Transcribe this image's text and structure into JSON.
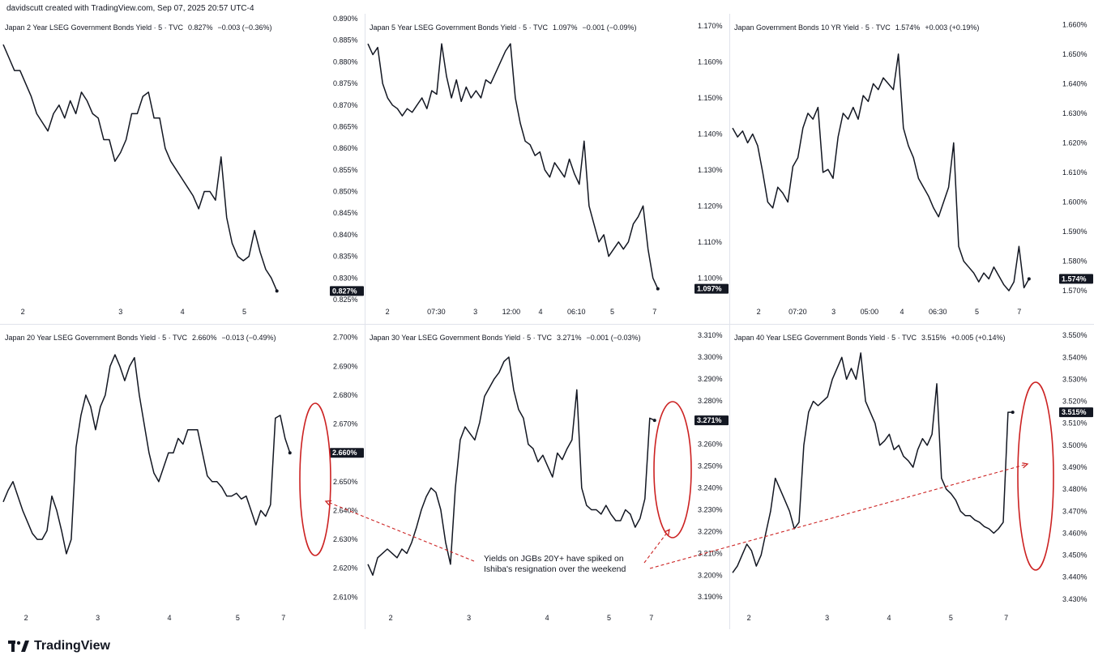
{
  "header": {
    "attribution": "davidscutt created with TradingView.com, Sep 07, 2025 20:57 UTC-4"
  },
  "brand": {
    "name": "TradingView",
    "logo_icon": "tradingview-logo-icon"
  },
  "annotation": {
    "text_line1": "Yields on JGBs 20Y+ have spiked on",
    "text_line2": "Ishiba's resignation over the weekend",
    "color": "#cc2222"
  },
  "colors": {
    "line": "#131722",
    "grid": "#e0e3eb",
    "last_bg": "#131722",
    "highlight": "#cc2222"
  },
  "chart_data": [
    {
      "type": "line",
      "title_name": "Japan 2 Year LSEG Government Bonds Yield · 5 · TVC",
      "title_last": "0.827%",
      "title_change": "−0.003 (−0.36%)",
      "last_label": "0.827%",
      "y_ticks": [
        "0.825%",
        "0.830%",
        "0.835%",
        "0.840%",
        "0.845%",
        "0.850%",
        "0.855%",
        "0.860%",
        "0.865%",
        "0.870%",
        "0.875%",
        "0.880%",
        "0.885%",
        "0.890%"
      ],
      "ylim": [
        0.825,
        0.89
      ],
      "x_ticks": [
        "2",
        "3",
        "4",
        "5"
      ],
      "x_tick_pos": [
        0.06,
        0.36,
        0.55,
        0.74
      ],
      "x_end": 0.84,
      "values": [
        0.884,
        0.881,
        0.878,
        0.878,
        0.875,
        0.872,
        0.868,
        0.866,
        0.864,
        0.868,
        0.87,
        0.867,
        0.871,
        0.868,
        0.873,
        0.871,
        0.868,
        0.867,
        0.862,
        0.862,
        0.857,
        0.859,
        0.862,
        0.868,
        0.868,
        0.872,
        0.873,
        0.867,
        0.867,
        0.86,
        0.857,
        0.855,
        0.853,
        0.851,
        0.849,
        0.846,
        0.85,
        0.85,
        0.848,
        0.858,
        0.844,
        0.838,
        0.835,
        0.834,
        0.835,
        0.841,
        0.836,
        0.832,
        0.83,
        0.827
      ],
      "last_value": 0.827
    },
    {
      "type": "line",
      "title_name": "Japan 5 Year LSEG Government Bonds Yield · 5 · TVC",
      "title_last": "1.097%",
      "title_change": "−0.001 (−0.09%)",
      "last_label": "1.097%",
      "y_ticks": [
        "1.100%",
        "1.110%",
        "1.120%",
        "1.130%",
        "1.140%",
        "1.150%",
        "1.160%",
        "1.170%"
      ],
      "ylim": [
        1.094,
        1.172
      ],
      "x_ticks": [
        "2",
        "07:30",
        "3",
        "12:00",
        "4",
        "06:10",
        "5",
        "7"
      ],
      "x_tick_pos": [
        0.06,
        0.21,
        0.33,
        0.44,
        0.53,
        0.64,
        0.75,
        0.88
      ],
      "x_end": 0.89,
      "values": [
        1.165,
        1.162,
        1.164,
        1.154,
        1.15,
        1.148,
        1.147,
        1.145,
        1.147,
        1.146,
        1.148,
        1.15,
        1.147,
        1.152,
        1.151,
        1.165,
        1.156,
        1.15,
        1.155,
        1.149,
        1.153,
        1.15,
        1.152,
        1.15,
        1.155,
        1.154,
        1.157,
        1.16,
        1.163,
        1.165,
        1.15,
        1.143,
        1.138,
        1.137,
        1.134,
        1.135,
        1.13,
        1.128,
        1.132,
        1.13,
        1.128,
        1.133,
        1.129,
        1.126,
        1.138,
        1.12,
        1.115,
        1.11,
        1.112,
        1.106,
        1.108,
        1.11,
        1.108,
        1.11,
        1.115,
        1.117,
        1.12,
        1.108,
        1.1,
        1.097
      ],
      "last_value": 1.097
    },
    {
      "type": "line",
      "title_name": "Japan Government Bonds 10 YR Yield · 5 · TVC",
      "title_last": "1.574%",
      "title_change": "+0.003 (+0.19%)",
      "last_label": "1.574%",
      "y_ticks": [
        "1.570%",
        "1.580%",
        "1.590%",
        "1.600%",
        "1.610%",
        "1.620%",
        "1.630%",
        "1.640%",
        "1.650%",
        "1.660%"
      ],
      "ylim": [
        1.567,
        1.662
      ],
      "x_ticks": [
        "2",
        "07:20",
        "3",
        "05:00",
        "4",
        "06:30",
        "5",
        "7"
      ],
      "x_tick_pos": [
        0.08,
        0.2,
        0.31,
        0.42,
        0.52,
        0.63,
        0.75,
        0.88
      ],
      "x_end": 0.91,
      "values": [
        1.625,
        1.622,
        1.624,
        1.62,
        1.623,
        1.619,
        1.61,
        1.6,
        1.598,
        1.605,
        1.603,
        1.6,
        1.612,
        1.615,
        1.625,
        1.63,
        1.628,
        1.632,
        1.61,
        1.611,
        1.608,
        1.622,
        1.63,
        1.628,
        1.632,
        1.628,
        1.636,
        1.634,
        1.64,
        1.638,
        1.642,
        1.64,
        1.638,
        1.65,
        1.625,
        1.619,
        1.615,
        1.608,
        1.605,
        1.602,
        1.598,
        1.595,
        1.6,
        1.605,
        1.62,
        1.585,
        1.58,
        1.578,
        1.576,
        1.573,
        1.576,
        1.574,
        1.578,
        1.575,
        1.572,
        1.57,
        1.573,
        1.585,
        1.571,
        1.574
      ],
      "last_value": 1.574
    },
    {
      "type": "line",
      "title_name": "Japan 20 Year LSEG Government Bonds Yield · 5 · TVC",
      "title_last": "2.660%",
      "title_change": "−0.013 (−0.49%)",
      "last_label": "2.660%",
      "y_ticks": [
        "2.610%",
        "2.620%",
        "2.630%",
        "2.640%",
        "2.650%",
        "2.660%",
        "2.670%",
        "2.680%",
        "2.690%",
        "2.700%"
      ],
      "ylim": [
        2.607,
        2.703
      ],
      "x_ticks": [
        "2",
        "3",
        "4",
        "5",
        "7"
      ],
      "x_tick_pos": [
        0.07,
        0.29,
        0.51,
        0.72,
        0.86
      ],
      "x_end": 0.88,
      "values": [
        2.643,
        2.647,
        2.65,
        2.645,
        2.64,
        2.636,
        2.632,
        2.63,
        2.63,
        2.633,
        2.645,
        2.64,
        2.633,
        2.625,
        2.63,
        2.662,
        2.673,
        2.68,
        2.676,
        2.668,
        2.676,
        2.68,
        2.69,
        2.694,
        2.69,
        2.685,
        2.69,
        2.693,
        2.68,
        2.67,
        2.66,
        2.653,
        2.65,
        2.655,
        2.66,
        2.66,
        2.665,
        2.663,
        2.668,
        2.668,
        2.668,
        2.66,
        2.652,
        2.65,
        2.65,
        2.648,
        2.645,
        2.645,
        2.646,
        2.644,
        2.645,
        2.64,
        2.635,
        2.64,
        2.638,
        2.642,
        2.672,
        2.673,
        2.665,
        2.66
      ],
      "last_value": 2.66
    },
    {
      "type": "line",
      "title_name": "Japan 30 Year LSEG Government Bonds Yield · 5 · TVC",
      "title_last": "3.271%",
      "title_change": "−0.001 (−0.03%)",
      "last_label": "3.271%",
      "y_ticks": [
        "3.190%",
        "3.200%",
        "3.210%",
        "3.220%",
        "3.230%",
        "3.240%",
        "3.250%",
        "3.260%",
        "3.270%",
        "3.280%",
        "3.290%",
        "3.300%",
        "3.310%"
      ],
      "ylim": [
        3.186,
        3.313
      ],
      "x_ticks": [
        "2",
        "3",
        "4",
        "5",
        "7"
      ],
      "x_tick_pos": [
        0.07,
        0.31,
        0.55,
        0.74,
        0.87
      ],
      "x_end": 0.88,
      "values": [
        3.205,
        3.2,
        3.208,
        3.21,
        3.212,
        3.21,
        3.208,
        3.212,
        3.21,
        3.215,
        3.222,
        3.23,
        3.236,
        3.24,
        3.238,
        3.23,
        3.215,
        3.205,
        3.24,
        3.262,
        3.268,
        3.265,
        3.262,
        3.27,
        3.282,
        3.286,
        3.29,
        3.293,
        3.298,
        3.3,
        3.285,
        3.276,
        3.272,
        3.26,
        3.258,
        3.252,
        3.255,
        3.25,
        3.245,
        3.256,
        3.253,
        3.258,
        3.262,
        3.285,
        3.24,
        3.232,
        3.23,
        3.23,
        3.228,
        3.232,
        3.228,
        3.225,
        3.225,
        3.23,
        3.228,
        3.222,
        3.226,
        3.235,
        3.272,
        3.271
      ],
      "last_value": 3.271
    },
    {
      "type": "line",
      "title_name": "Japan 40 Year LSEG Government Bonds Yield · 5 · TVC",
      "title_last": "3.515%",
      "title_change": "+0.005 (+0.14%)",
      "last_label": "3.515%",
      "y_ticks": [
        "3.430%",
        "3.440%",
        "3.450%",
        "3.460%",
        "3.470%",
        "3.480%",
        "3.490%",
        "3.500%",
        "3.510%",
        "3.520%",
        "3.530%",
        "3.540%",
        "3.550%"
      ],
      "ylim": [
        3.427,
        3.553
      ],
      "x_ticks": [
        "2",
        "3",
        "4",
        "5",
        "7"
      ],
      "x_tick_pos": [
        0.05,
        0.29,
        0.48,
        0.67,
        0.84
      ],
      "x_end": 0.86,
      "values": [
        3.442,
        3.445,
        3.45,
        3.455,
        3.452,
        3.445,
        3.45,
        3.46,
        3.47,
        3.485,
        3.48,
        3.475,
        3.47,
        3.462,
        3.465,
        3.5,
        3.515,
        3.52,
        3.518,
        3.52,
        3.522,
        3.53,
        3.535,
        3.54,
        3.53,
        3.535,
        3.53,
        3.542,
        3.52,
        3.515,
        3.51,
        3.5,
        3.502,
        3.505,
        3.498,
        3.5,
        3.495,
        3.493,
        3.49,
        3.498,
        3.503,
        3.5,
        3.505,
        3.528,
        3.485,
        3.48,
        3.478,
        3.475,
        3.47,
        3.468,
        3.468,
        3.466,
        3.465,
        3.463,
        3.462,
        3.46,
        3.462,
        3.465,
        3.515,
        3.515
      ],
      "last_value": 3.515
    }
  ]
}
